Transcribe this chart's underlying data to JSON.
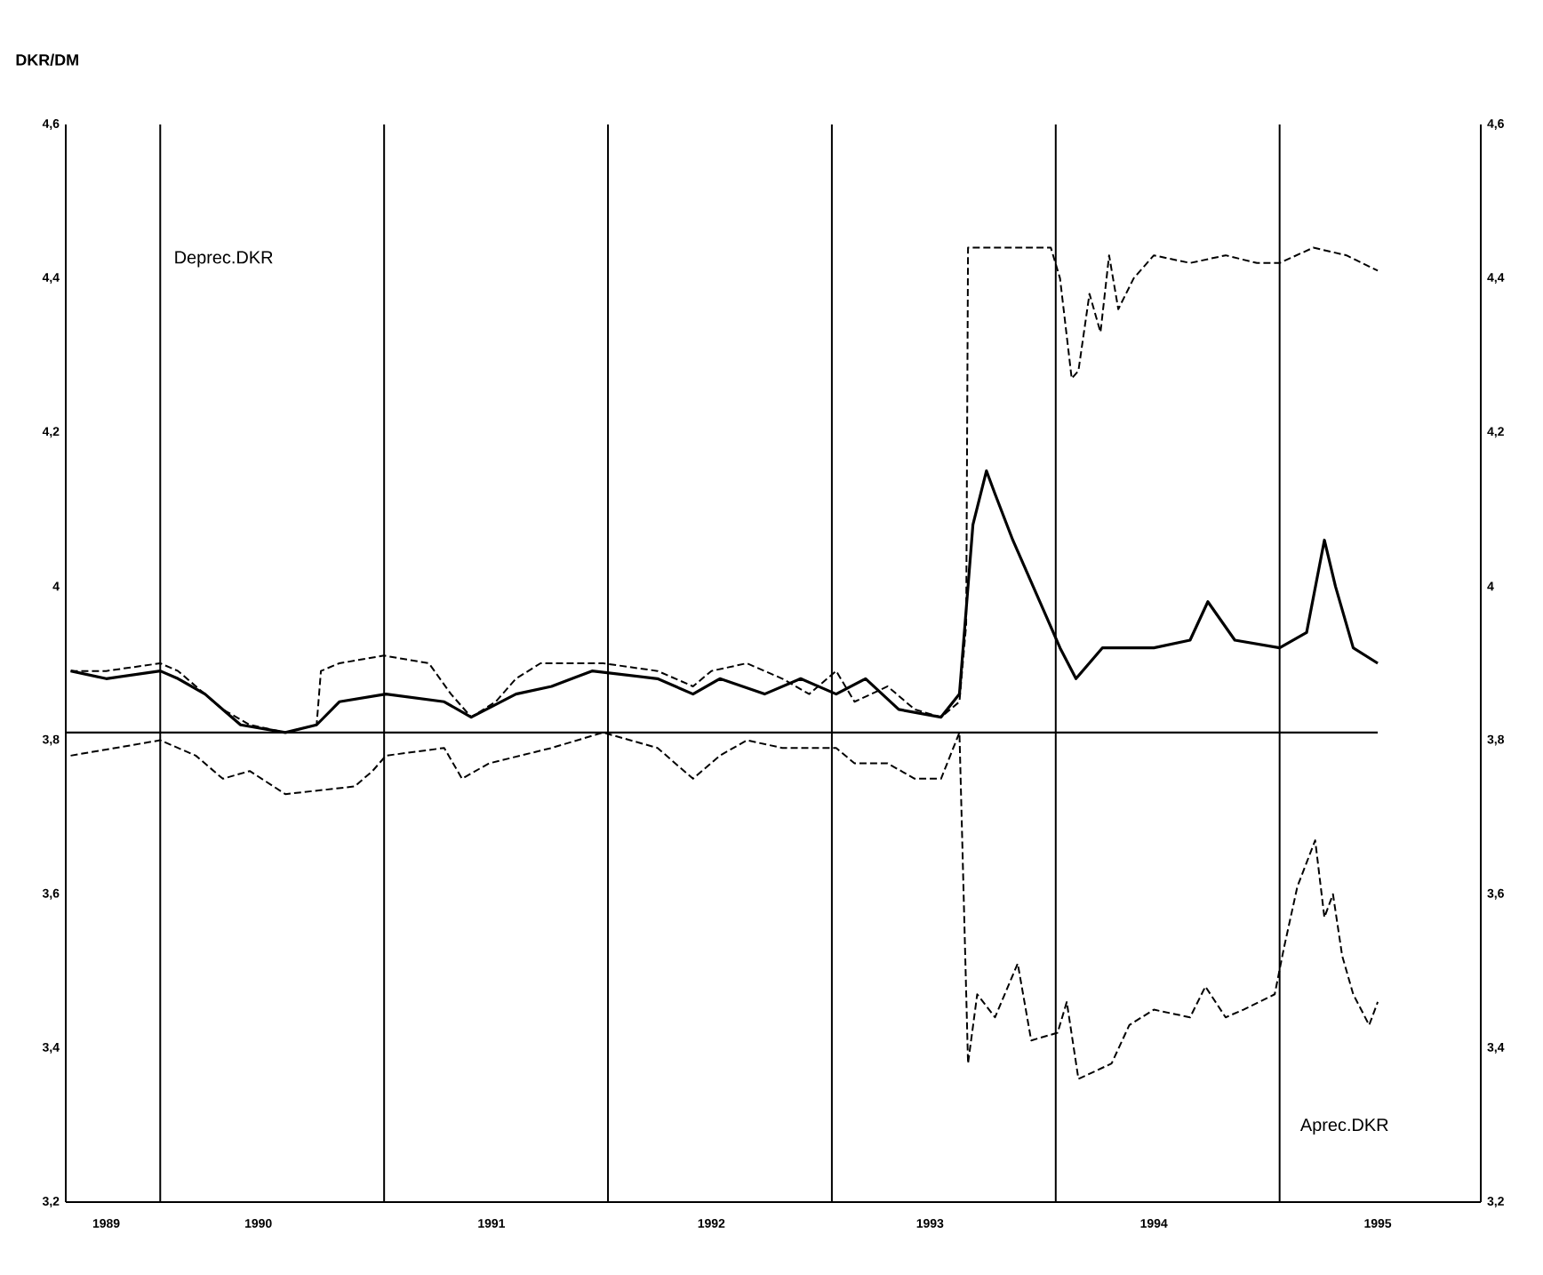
{
  "chart_data": {
    "type": "line",
    "ylabel": "DKR/DM",
    "annotations": [
      "Deprec.DKR",
      "Aprec.DKR"
    ],
    "xlim": [
      "1989-07-31",
      "1995-11-25"
    ],
    "xticks": [
      {
        "value": "1989-10-05",
        "label": "1989"
      },
      {
        "value": "1990-06-10",
        "label": "1990"
      },
      {
        "value": "1991-06-25",
        "label": "1991"
      },
      {
        "value": "1992-06-18",
        "label": "1992"
      },
      {
        "value": "1993-06-10",
        "label": "1993"
      },
      {
        "value": "1994-06-10",
        "label": "1994"
      },
      {
        "value": "1995-06-10",
        "label": "1995"
      }
    ],
    "ylim": [
      3.2,
      4.6
    ],
    "yticks": [
      {
        "value": 3.2,
        "label": "3,2"
      },
      {
        "value": 3.4,
        "label": "3,4"
      },
      {
        "value": 3.6,
        "label": "3,6"
      },
      {
        "value": 3.8,
        "label": "3,8"
      },
      4,
      {
        "value": 4.2,
        "label": "4,2"
      },
      {
        "value": 4.4,
        "label": "4,4"
      },
      {
        "value": 4.6,
        "label": "4,6"
      }
    ],
    "y2lim": [
      3.2,
      4.6
    ],
    "y2ticks": [
      {
        "value": 3.2,
        "label": "3,2"
      },
      {
        "value": 3.4,
        "label": "3,4"
      },
      {
        "value": 3.6,
        "label": "3,6"
      },
      {
        "value": 3.8,
        "label": "3,8"
      },
      4,
      {
        "value": 4.2,
        "label": "4,2"
      },
      {
        "value": 4.4,
        "label": "4,4"
      },
      {
        "value": 4.6,
        "label": "4,6"
      }
    ],
    "grid": false,
    "ref_lines": [
      {
        "axis": "y",
        "value": 3.81,
        "color": "#000000"
      },
      {
        "axis": "x",
        "value": "1990-01-01",
        "color": "#000000"
      },
      {
        "axis": "x",
        "value": "1991-01-01",
        "color": "#000000"
      },
      {
        "axis": "x",
        "value": "1992-01-01",
        "color": "#000000"
      },
      {
        "axis": "x",
        "value": "1993-01-01",
        "color": "#000000"
      },
      {
        "axis": "x",
        "value": "1994-01-01",
        "color": "#000000"
      },
      {
        "axis": "x",
        "value": "1995-01-01",
        "color": "#000000"
      }
    ],
    "series": [
      {
        "color": "#000000",
        "line_style": "dashed",
        "x": [
          "1989-08-08",
          "1989-10-05",
          "1990-01-01",
          "1990-01-30",
          "1990-04-13",
          "1990-05-27",
          "1990-07-24",
          "1990-09-13",
          "1990-09-20",
          "1990-10-20",
          "1991-01-01",
          "1991-03-15",
          "1991-04-20",
          "1991-05-23",
          "1991-07-02",
          "1991-08-04",
          "1991-09-13",
          "1991-12-24",
          "1992-03-22",
          "1992-05-19",
          "1992-06-18",
          "1992-08-15",
          "1992-10-12",
          "1992-11-25",
          "1993-01-08",
          "1993-02-07",
          "1993-04-02",
          "1993-05-16",
          "1993-06-28",
          "1993-07-28",
          "1993-08-08",
          "1993-08-11",
          "1993-10-20",
          "1993-12-24",
          "1994-01-08",
          "1994-01-27",
          "1994-02-07",
          "1994-02-25",
          "1994-03-15",
          "1994-03-29",
          "1994-04-13",
          "1994-05-08",
          "1994-06-10",
          "1994-08-08",
          "1994-10-05",
          "1994-11-25",
          "1995-01-01",
          "1995-02-25",
          "1995-04-20",
          "1995-06-10"
        ],
        "values": [
          3.89,
          3.89,
          3.9,
          3.89,
          3.84,
          3.82,
          3.81,
          3.82,
          3.89,
          3.9,
          3.91,
          3.9,
          3.86,
          3.83,
          3.85,
          3.88,
          3.9,
          3.9,
          3.89,
          3.87,
          3.89,
          3.9,
          3.88,
          3.86,
          3.89,
          3.85,
          3.87,
          3.84,
          3.83,
          3.85,
          3.95,
          4.44,
          4.44,
          4.44,
          4.4,
          4.27,
          4.28,
          4.38,
          4.33,
          4.43,
          4.36,
          4.4,
          4.43,
          4.42,
          4.43,
          4.42,
          4.42,
          4.44,
          4.43,
          4.41
        ]
      },
      {
        "color": "#000000",
        "line_style": "solid",
        "x": [
          "1989-08-08",
          "1989-10-05",
          "1990-01-01",
          "1990-01-30",
          "1990-03-15",
          "1990-05-12",
          "1990-07-24",
          "1990-09-13",
          "1990-10-20",
          "1991-01-04",
          "1991-04-09",
          "1991-05-23",
          "1991-08-04",
          "1991-10-01",
          "1991-12-06",
          "1992-03-22",
          "1992-05-19",
          "1992-07-02",
          "1992-09-13",
          "1992-11-11",
          "1993-01-08",
          "1993-02-25",
          "1993-04-20",
          "1993-06-28",
          "1993-07-28",
          "1993-08-19",
          "1993-09-10",
          "1993-09-24",
          "1993-10-23",
          "1993-12-06",
          "1994-01-08",
          "1994-02-03",
          "1994-03-18",
          "1994-06-10",
          "1994-08-08",
          "1994-09-06",
          "1994-10-20",
          "1995-01-01",
          "1995-02-14",
          "1995-03-15",
          "1995-04-02",
          "1995-05-01",
          "1995-06-10"
        ],
        "values": [
          3.89,
          3.88,
          3.89,
          3.88,
          3.86,
          3.82,
          3.81,
          3.82,
          3.85,
          3.86,
          3.85,
          3.83,
          3.86,
          3.87,
          3.89,
          3.88,
          3.86,
          3.88,
          3.86,
          3.88,
          3.86,
          3.88,
          3.84,
          3.83,
          3.86,
          4.08,
          4.15,
          4.12,
          4.06,
          3.98,
          3.92,
          3.88,
          3.92,
          3.92,
          3.93,
          3.98,
          3.93,
          3.92,
          3.94,
          4.06,
          4.0,
          3.92,
          3.9
        ]
      },
      {
        "color": "#000000",
        "line_style": "dashed",
        "x": [
          "1989-08-08",
          "1990-01-01",
          "1990-02-28",
          "1990-04-13",
          "1990-05-27",
          "1990-07-24",
          "1990-11-14",
          "1990-12-13",
          "1991-01-04",
          "1991-04-09",
          "1991-05-08",
          "1991-06-21",
          "1991-10-01",
          "1991-12-24",
          "1992-03-22",
          "1992-05-19",
          "1992-07-02",
          "1992-08-15",
          "1992-10-12",
          "1993-01-08",
          "1993-02-07",
          "1993-04-02",
          "1993-05-16",
          "1993-06-28",
          "1993-07-28",
          "1993-08-11",
          "1993-08-26",
          "1993-09-24",
          "1993-10-31",
          "1993-11-22",
          "1994-01-04",
          "1994-01-19",
          "1994-02-07",
          "1994-04-02",
          "1994-05-01",
          "1994-06-10",
          "1994-08-08",
          "1994-09-02",
          "1994-10-05",
          "1994-11-03",
          "1994-12-24",
          "1995-01-08",
          "1995-01-30",
          "1995-02-28",
          "1995-03-15",
          "1995-03-29",
          "1995-04-13",
          "1995-05-01",
          "1995-05-27",
          "1995-06-10"
        ],
        "values": [
          3.78,
          3.8,
          3.78,
          3.75,
          3.76,
          3.73,
          3.74,
          3.76,
          3.78,
          3.79,
          3.75,
          3.77,
          3.79,
          3.81,
          3.79,
          3.75,
          3.78,
          3.8,
          3.79,
          3.79,
          3.77,
          3.77,
          3.75,
          3.75,
          3.81,
          3.38,
          3.47,
          3.44,
          3.51,
          3.41,
          3.42,
          3.46,
          3.36,
          3.38,
          3.43,
          3.45,
          3.44,
          3.48,
          3.44,
          3.45,
          3.47,
          3.53,
          3.61,
          3.67,
          3.57,
          3.6,
          3.52,
          3.47,
          3.43,
          3.46
        ]
      }
    ]
  }
}
